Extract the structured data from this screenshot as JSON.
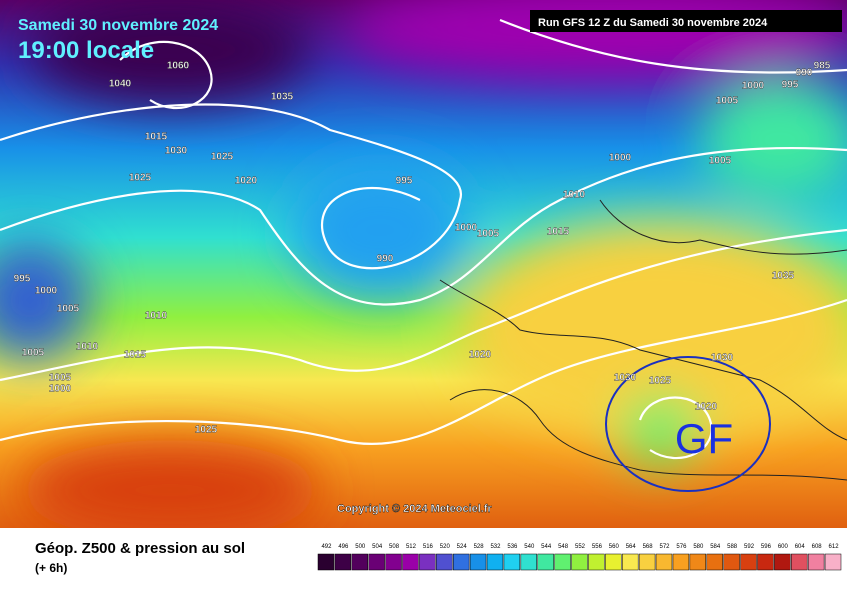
{
  "header": {
    "date": "Samedi 30 novembre 2024",
    "time": "19:00 locale",
    "run": "Run GFS 12 Z du Samedi 30 novembre 2024"
  },
  "copyright": "Copyright © 2024 Meteociel.fr",
  "center_label": "GF",
  "isobar_labels": [
    1060,
    1040,
    1035,
    1015,
    1030,
    1025,
    1025,
    1020,
    995,
    990,
    1000,
    1005,
    1010,
    1015,
    1000,
    1005,
    1005,
    1000,
    995,
    990,
    985,
    1035,
    1020,
    1030,
    1030,
    1025,
    1020,
    1025,
    995,
    1000,
    1005,
    1010,
    1010,
    1015,
    1005,
    1005,
    1000
  ],
  "footer": {
    "title": "Géop. Z500 & pression au sol",
    "subtitle": "(+ 6h)"
  },
  "legend": {
    "values": [
      492,
      496,
      500,
      504,
      508,
      512,
      516,
      520,
      524,
      528,
      532,
      536,
      540,
      544,
      548,
      552,
      556,
      560,
      564,
      568,
      572,
      576,
      580,
      584,
      588,
      592,
      596,
      600,
      604,
      608,
      612
    ],
    "colors": [
      "#2a0030",
      "#3d0046",
      "#52005c",
      "#6a0075",
      "#82008f",
      "#9a00a8",
      "#7a30c0",
      "#5050d0",
      "#3070e0",
      "#1890e8",
      "#10b0f0",
      "#20d0f0",
      "#30e0d0",
      "#40e8a0",
      "#60f070",
      "#90f040",
      "#c0f030",
      "#e8f030",
      "#f8e850",
      "#f8d040",
      "#f8b830",
      "#f8a020",
      "#f08818",
      "#e87010",
      "#e05810",
      "#d84010",
      "#c82810",
      "#b01810",
      "#e05060",
      "#f080a0",
      "#f8b0c8"
    ]
  }
}
